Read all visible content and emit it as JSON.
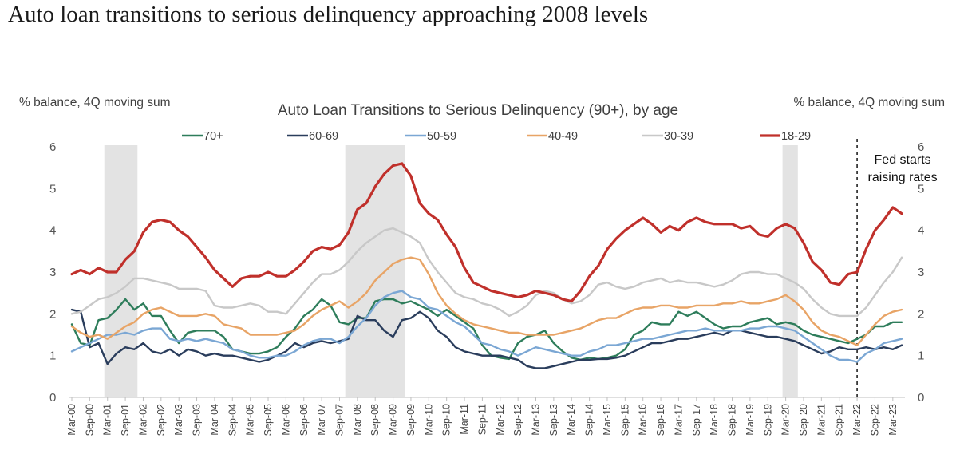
{
  "page_title": "Auto loan transitions to serious delinquency approaching 2008 levels",
  "chart_data": {
    "type": "line",
    "title": "Auto Loan Transitions to Serious Delinquency (90+), by age",
    "ylabel_left": "% balance, 4Q moving sum",
    "ylabel_right": "% balance, 4Q moving sum",
    "ylim": [
      0,
      6
    ],
    "yticks": [
      0,
      1,
      2,
      3,
      4,
      5,
      6
    ],
    "legend_position": "top",
    "recession_shading": [
      [
        "2001Q1",
        "2001Q4"
      ],
      [
        "2007Q4",
        "2009Q2"
      ],
      [
        "2020Q1",
        "2020Q2"
      ]
    ],
    "x_tick_labels": [
      "Mar-00",
      "Sep-00",
      "Mar-01",
      "Sep-01",
      "Mar-02",
      "Sep-02",
      "Mar-03",
      "Sep-03",
      "Mar-04",
      "Sep-04",
      "Mar-05",
      "Sep-05",
      "Mar-06",
      "Sep-06",
      "Mar-07",
      "Sep-07",
      "Mar-08",
      "Sep-08",
      "Mar-09",
      "Sep-09",
      "Mar-10",
      "Sep-10",
      "Mar-11",
      "Sep-11",
      "Mar-12",
      "Sep-12",
      "Mar-13",
      "Sep-13",
      "Mar-14",
      "Sep-14",
      "Mar-15",
      "Sep-15",
      "Mar-16",
      "Sep-16",
      "Mar-17",
      "Sep-17",
      "Mar-18",
      "Sep-18",
      "Mar-19",
      "Sep-19",
      "Mar-20",
      "Sep-20",
      "Mar-21",
      "Sep-21",
      "Mar-22",
      "Sep-22",
      "Mar-23"
    ],
    "x": [
      "2000Q1",
      "2000Q2",
      "2000Q3",
      "2000Q4",
      "2001Q1",
      "2001Q2",
      "2001Q3",
      "2001Q4",
      "2002Q1",
      "2002Q2",
      "2002Q3",
      "2002Q4",
      "2003Q1",
      "2003Q2",
      "2003Q3",
      "2003Q4",
      "2004Q1",
      "2004Q2",
      "2004Q3",
      "2004Q4",
      "2005Q1",
      "2005Q2",
      "2005Q3",
      "2005Q4",
      "2006Q1",
      "2006Q2",
      "2006Q3",
      "2006Q4",
      "2007Q1",
      "2007Q2",
      "2007Q3",
      "2007Q4",
      "2008Q1",
      "2008Q2",
      "2008Q3",
      "2008Q4",
      "2009Q1",
      "2009Q2",
      "2009Q3",
      "2009Q4",
      "2010Q1",
      "2010Q2",
      "2010Q3",
      "2010Q4",
      "2011Q1",
      "2011Q2",
      "2011Q3",
      "2011Q4",
      "2012Q1",
      "2012Q2",
      "2012Q3",
      "2012Q4",
      "2013Q1",
      "2013Q2",
      "2013Q3",
      "2013Q4",
      "2014Q1",
      "2014Q2",
      "2014Q3",
      "2014Q4",
      "2015Q1",
      "2015Q2",
      "2015Q3",
      "2015Q4",
      "2016Q1",
      "2016Q2",
      "2016Q3",
      "2016Q4",
      "2017Q1",
      "2017Q2",
      "2017Q3",
      "2017Q4",
      "2018Q1",
      "2018Q2",
      "2018Q3",
      "2018Q4",
      "2019Q1",
      "2019Q2",
      "2019Q3",
      "2019Q4",
      "2020Q1",
      "2020Q2",
      "2020Q3",
      "2020Q4",
      "2021Q1",
      "2021Q2",
      "2021Q3",
      "2021Q4",
      "2022Q1",
      "2022Q2",
      "2022Q3",
      "2022Q4",
      "2023Q1",
      "2023Q2"
    ],
    "series": [
      {
        "name": "70+",
        "color": "#2e7d5b",
        "values": [
          1.75,
          1.3,
          1.25,
          1.85,
          1.9,
          2.1,
          2.35,
          2.1,
          2.25,
          1.95,
          1.95,
          1.6,
          1.3,
          1.55,
          1.6,
          1.6,
          1.6,
          1.45,
          1.15,
          1.1,
          1.05,
          1.05,
          1.1,
          1.2,
          1.45,
          1.65,
          1.95,
          2.1,
          2.35,
          2.2,
          1.8,
          1.75,
          1.9,
          1.9,
          2.3,
          2.35,
          2.35,
          2.25,
          2.3,
          2.2,
          2.1,
          1.95,
          2.1,
          1.95,
          1.8,
          1.65,
          1.25,
          1.0,
          0.95,
          0.92,
          1.3,
          1.45,
          1.5,
          1.6,
          1.3,
          1.1,
          0.95,
          0.9,
          0.95,
          0.92,
          0.95,
          1.0,
          1.15,
          1.5,
          1.6,
          1.8,
          1.75,
          1.75,
          2.05,
          1.95,
          2.05,
          1.9,
          1.75,
          1.65,
          1.7,
          1.7,
          1.8,
          1.85,
          1.9,
          1.75,
          1.8,
          1.75,
          1.6,
          1.5,
          1.45,
          1.4,
          1.35,
          1.3,
          1.4,
          1.5,
          1.7,
          1.7,
          1.8,
          1.8
        ]
      },
      {
        "name": "60-69",
        "color": "#2a3d5c",
        "values": [
          2.1,
          2.05,
          1.2,
          1.3,
          0.8,
          1.05,
          1.2,
          1.15,
          1.3,
          1.1,
          1.05,
          1.15,
          1.0,
          1.15,
          1.1,
          1.0,
          1.05,
          1.0,
          1.0,
          0.95,
          0.9,
          0.85,
          0.9,
          1.0,
          1.1,
          1.3,
          1.2,
          1.3,
          1.35,
          1.3,
          1.35,
          1.4,
          1.95,
          1.85,
          1.85,
          1.6,
          1.45,
          1.85,
          1.9,
          2.05,
          1.9,
          1.6,
          1.45,
          1.2,
          1.1,
          1.05,
          1.0,
          1.0,
          1.0,
          0.95,
          0.9,
          0.75,
          0.7,
          0.7,
          0.75,
          0.8,
          0.85,
          0.9,
          0.9,
          0.92,
          0.92,
          0.95,
          1.0,
          1.1,
          1.2,
          1.3,
          1.3,
          1.35,
          1.4,
          1.4,
          1.45,
          1.5,
          1.55,
          1.5,
          1.6,
          1.6,
          1.55,
          1.5,
          1.45,
          1.45,
          1.4,
          1.35,
          1.25,
          1.15,
          1.05,
          1.1,
          1.2,
          1.15,
          1.15,
          1.2,
          1.15,
          1.2,
          1.15,
          1.25
        ]
      },
      {
        "name": "50-59",
        "color": "#7ba7d4",
        "values": [
          1.1,
          1.2,
          1.3,
          1.4,
          1.5,
          1.5,
          1.55,
          1.5,
          1.6,
          1.65,
          1.65,
          1.4,
          1.35,
          1.4,
          1.35,
          1.4,
          1.35,
          1.3,
          1.15,
          1.1,
          1.0,
          0.95,
          0.95,
          1.0,
          1.0,
          1.1,
          1.25,
          1.35,
          1.4,
          1.4,
          1.3,
          1.45,
          1.7,
          1.9,
          2.2,
          2.4,
          2.5,
          2.55,
          2.4,
          2.35,
          2.15,
          2.1,
          1.95,
          1.8,
          1.7,
          1.5,
          1.3,
          1.25,
          1.15,
          1.1,
          1.0,
          1.1,
          1.2,
          1.15,
          1.1,
          1.05,
          1.0,
          1.0,
          1.1,
          1.15,
          1.25,
          1.25,
          1.3,
          1.35,
          1.4,
          1.4,
          1.45,
          1.5,
          1.55,
          1.6,
          1.6,
          1.65,
          1.6,
          1.6,
          1.6,
          1.6,
          1.65,
          1.65,
          1.7,
          1.7,
          1.65,
          1.6,
          1.45,
          1.3,
          1.15,
          1.0,
          0.9,
          0.9,
          0.85,
          1.05,
          1.15,
          1.3,
          1.35,
          1.4
        ]
      },
      {
        "name": "40-49",
        "color": "#e8a466",
        "values": [
          1.7,
          1.55,
          1.45,
          1.5,
          1.4,
          1.55,
          1.7,
          1.8,
          2.0,
          2.1,
          2.15,
          2.05,
          1.95,
          1.95,
          1.95,
          2.0,
          1.95,
          1.75,
          1.7,
          1.65,
          1.5,
          1.5,
          1.5,
          1.5,
          1.55,
          1.6,
          1.75,
          1.95,
          2.1,
          2.2,
          2.3,
          2.15,
          2.3,
          2.5,
          2.8,
          3.0,
          3.2,
          3.3,
          3.35,
          3.3,
          2.95,
          2.5,
          2.2,
          2.0,
          1.85,
          1.75,
          1.7,
          1.65,
          1.6,
          1.55,
          1.55,
          1.5,
          1.5,
          1.5,
          1.5,
          1.55,
          1.6,
          1.65,
          1.75,
          1.85,
          1.9,
          1.9,
          2.0,
          2.1,
          2.15,
          2.15,
          2.2,
          2.2,
          2.15,
          2.15,
          2.2,
          2.2,
          2.2,
          2.25,
          2.25,
          2.3,
          2.25,
          2.25,
          2.3,
          2.35,
          2.45,
          2.3,
          2.1,
          1.8,
          1.6,
          1.5,
          1.45,
          1.35,
          1.25,
          1.5,
          1.75,
          1.95,
          2.05,
          2.1
        ]
      },
      {
        "name": "30-39",
        "color": "#c8c8c8",
        "values": [
          2.0,
          2.05,
          2.2,
          2.35,
          2.4,
          2.5,
          2.65,
          2.85,
          2.85,
          2.8,
          2.75,
          2.7,
          2.6,
          2.6,
          2.6,
          2.55,
          2.2,
          2.15,
          2.15,
          2.2,
          2.25,
          2.2,
          2.05,
          2.05,
          2.0,
          2.25,
          2.5,
          2.75,
          2.95,
          2.95,
          3.05,
          3.25,
          3.5,
          3.7,
          3.85,
          4.0,
          4.05,
          3.95,
          3.85,
          3.7,
          3.3,
          3.0,
          2.75,
          2.5,
          2.4,
          2.35,
          2.25,
          2.2,
          2.1,
          1.95,
          2.05,
          2.2,
          2.45,
          2.55,
          2.5,
          2.35,
          2.25,
          2.3,
          2.45,
          2.7,
          2.75,
          2.65,
          2.6,
          2.65,
          2.75,
          2.8,
          2.85,
          2.75,
          2.8,
          2.75,
          2.75,
          2.7,
          2.65,
          2.7,
          2.8,
          2.95,
          3.0,
          3.0,
          2.95,
          2.95,
          2.85,
          2.75,
          2.6,
          2.35,
          2.15,
          2.0,
          1.95,
          1.95,
          1.95,
          2.15,
          2.45,
          2.75,
          3.0,
          3.35
        ]
      },
      {
        "name": "18-29",
        "color": "#c0302b",
        "values": [
          2.95,
          3.05,
          2.95,
          3.1,
          3.0,
          3.0,
          3.3,
          3.5,
          3.95,
          4.2,
          4.25,
          4.2,
          4.0,
          3.85,
          3.6,
          3.35,
          3.05,
          2.85,
          2.65,
          2.85,
          2.9,
          2.9,
          3.0,
          2.9,
          2.9,
          3.05,
          3.25,
          3.5,
          3.6,
          3.55,
          3.65,
          3.95,
          4.5,
          4.65,
          5.05,
          5.35,
          5.55,
          5.6,
          5.3,
          4.65,
          4.4,
          4.25,
          3.9,
          3.6,
          3.1,
          2.75,
          2.65,
          2.55,
          2.5,
          2.45,
          2.4,
          2.45,
          2.55,
          2.5,
          2.45,
          2.35,
          2.3,
          2.55,
          2.9,
          3.15,
          3.55,
          3.8,
          4.0,
          4.15,
          4.3,
          4.15,
          3.95,
          4.1,
          4.0,
          4.2,
          4.3,
          4.2,
          4.15,
          4.15,
          4.15,
          4.05,
          4.1,
          3.9,
          3.85,
          4.05,
          4.15,
          4.05,
          3.7,
          3.25,
          3.05,
          2.75,
          2.7,
          2.95,
          3.0,
          3.55,
          4.0,
          4.25,
          4.55,
          4.4
        ]
      }
    ],
    "annotations": [
      {
        "text_lines": [
          "Fed starts",
          "raising rates"
        ],
        "at": "2022Q1",
        "style": "dashed-vertical-line"
      }
    ]
  }
}
